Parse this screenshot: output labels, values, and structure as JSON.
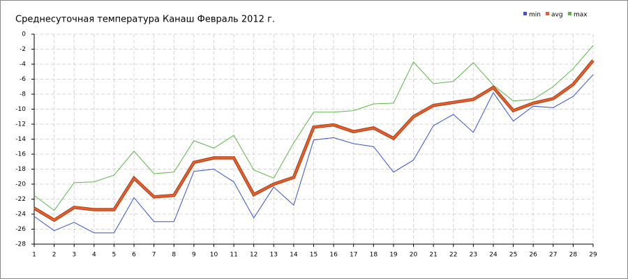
{
  "chart_data": {
    "type": "line",
    "title": "Среднесуточная температура Канаш  Февраль 2012 г.",
    "x": [
      1,
      2,
      3,
      4,
      5,
      6,
      7,
      8,
      9,
      10,
      11,
      12,
      13,
      14,
      15,
      16,
      17,
      18,
      19,
      20,
      21,
      22,
      23,
      24,
      25,
      26,
      27,
      28,
      29
    ],
    "xlim": [
      1,
      29
    ],
    "ylim": [
      -28,
      0
    ],
    "yticks": [
      0,
      -2,
      -4,
      -6,
      -8,
      -10,
      -12,
      -14,
      -16,
      -18,
      -20,
      -22,
      -24,
      -26,
      -28
    ],
    "grid": true,
    "legend": "top-right",
    "series": [
      {
        "name": "min",
        "color": "#3553d6",
        "values": [
          -24.3,
          -26.2,
          -25.1,
          -26.5,
          -26.5,
          -21.8,
          -25,
          -25,
          -18.3,
          -18,
          -19.7,
          -24.5,
          -20.4,
          -22.8,
          -14.1,
          -13.8,
          -14.6,
          -15,
          -18.4,
          -16.8,
          -12.2,
          -10.7,
          -13.1,
          -7.8,
          -11.6,
          -9.6,
          -9.8,
          -8.3,
          -5.4
        ]
      },
      {
        "name": "avg",
        "color": "#e8602c",
        "values": [
          -23.2,
          -24.8,
          -23.1,
          -23.4,
          -23.4,
          -19.2,
          -21.7,
          -21.5,
          -17.1,
          -16.5,
          -16.5,
          -21.4,
          -20,
          -19.1,
          -12.4,
          -12.1,
          -13,
          -12.5,
          -13.9,
          -11,
          -9.5,
          -9.1,
          -8.7,
          -7.1,
          -10.2,
          -9.2,
          -8.6,
          -6.7,
          -3.5
        ]
      },
      {
        "name": "max",
        "color": "#5ab946",
        "values": [
          -21.5,
          -23.5,
          -19.8,
          -19.7,
          -18.8,
          -15.6,
          -18.6,
          -18.4,
          -14.2,
          -15.2,
          -13.5,
          -18.1,
          -19.2,
          -14.5,
          -10.4,
          -10.4,
          -10.2,
          -9.3,
          -9.2,
          -3.7,
          -6.6,
          -6.3,
          -3.8,
          -6.8,
          -8.9,
          -8.7,
          -7,
          -4.6,
          -1.5
        ]
      }
    ]
  }
}
